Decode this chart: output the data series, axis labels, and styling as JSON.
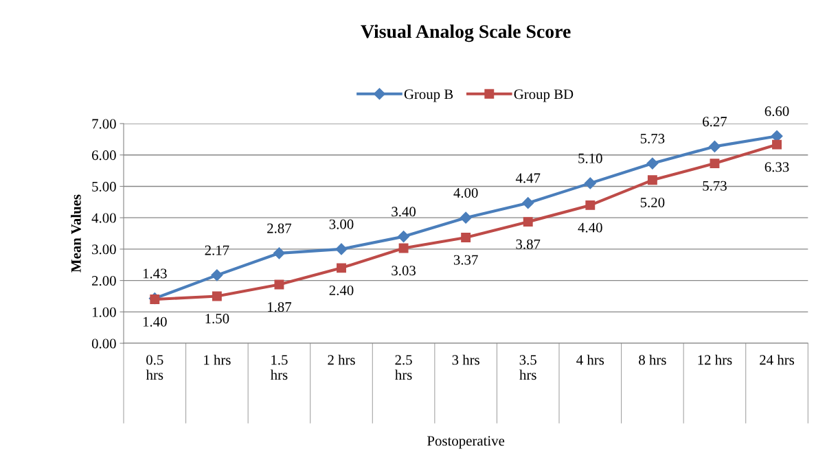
{
  "chart_data": {
    "type": "line",
    "title": "Visual Analog Scale Score",
    "xlabel": "Postoperative",
    "ylabel": "Mean Values",
    "categories": [
      "0.5 hrs",
      "1 hrs",
      "1.5 hrs",
      "2 hrs",
      "2.5 hrs",
      "3 hrs",
      "3.5 hrs",
      "4 hrs",
      "8 hrs",
      "12 hrs",
      "24 hrs"
    ],
    "series": [
      {
        "name": "Group B",
        "color": "#4a7ebb",
        "marker": "diamond",
        "values": [
          1.43,
          2.17,
          2.87,
          3.0,
          3.4,
          4.0,
          4.47,
          5.1,
          5.73,
          6.27,
          6.6
        ],
        "value_labels": [
          "1.43",
          "2.17",
          "2.87",
          "3.00",
          "3.40",
          "4.00",
          "4.47",
          "5.10",
          "5.73",
          "6.27",
          "6.60"
        ]
      },
      {
        "name": "Group BD",
        "color": "#be4b48",
        "marker": "square",
        "values": [
          1.4,
          1.5,
          1.87,
          2.4,
          3.03,
          3.37,
          3.87,
          4.4,
          5.2,
          5.73,
          6.33
        ],
        "value_labels": [
          "1.40",
          "1.50",
          "1.87",
          "2.40",
          "3.03",
          "3.37",
          "3.87",
          "4.40",
          "5.20",
          "5.73",
          "6.33"
        ]
      }
    ],
    "ylim": [
      0,
      7
    ],
    "yticks": [
      {
        "value": 0,
        "label": "0.00"
      },
      {
        "value": 1,
        "label": "1.00"
      },
      {
        "value": 2,
        "label": "2.00"
      },
      {
        "value": 3,
        "label": "3.00"
      },
      {
        "value": 4,
        "label": "4.00"
      },
      {
        "value": 5,
        "label": "5.00"
      },
      {
        "value": 6,
        "label": "6.00"
      },
      {
        "value": 7,
        "label": "7.00"
      }
    ],
    "grid": "y",
    "legend": "top",
    "line_style": "solid"
  }
}
